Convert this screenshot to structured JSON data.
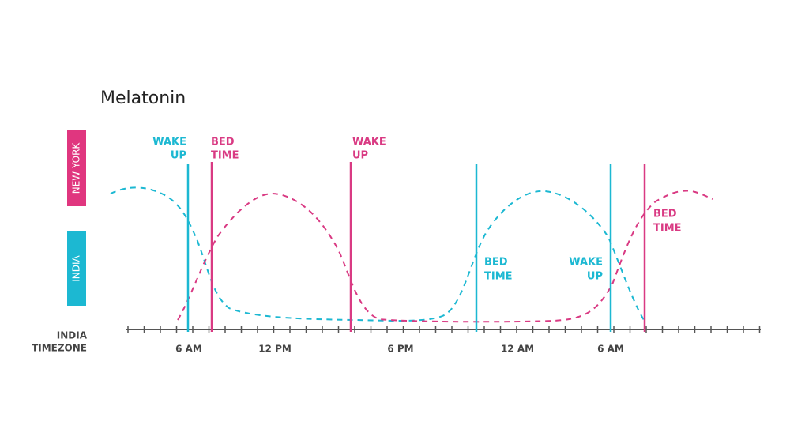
{
  "title": "Melatonin",
  "legend": [
    "NEW YORK",
    "INDIA"
  ],
  "axis_label": [
    "INDIA",
    "TIMEZONE"
  ],
  "tick_labels": [
    "6 AM",
    "12 PM",
    "6 PM",
    "12 AM",
    "6 AM"
  ],
  "annotations": [
    [
      "WAKE",
      "UP"
    ],
    [
      "BED",
      "TIME"
    ],
    [
      "WAKE",
      "UP"
    ],
    [
      "BED",
      "TIME"
    ],
    [
      "WAKE",
      "UP"
    ],
    [
      "BED",
      "TIME"
    ]
  ]
}
